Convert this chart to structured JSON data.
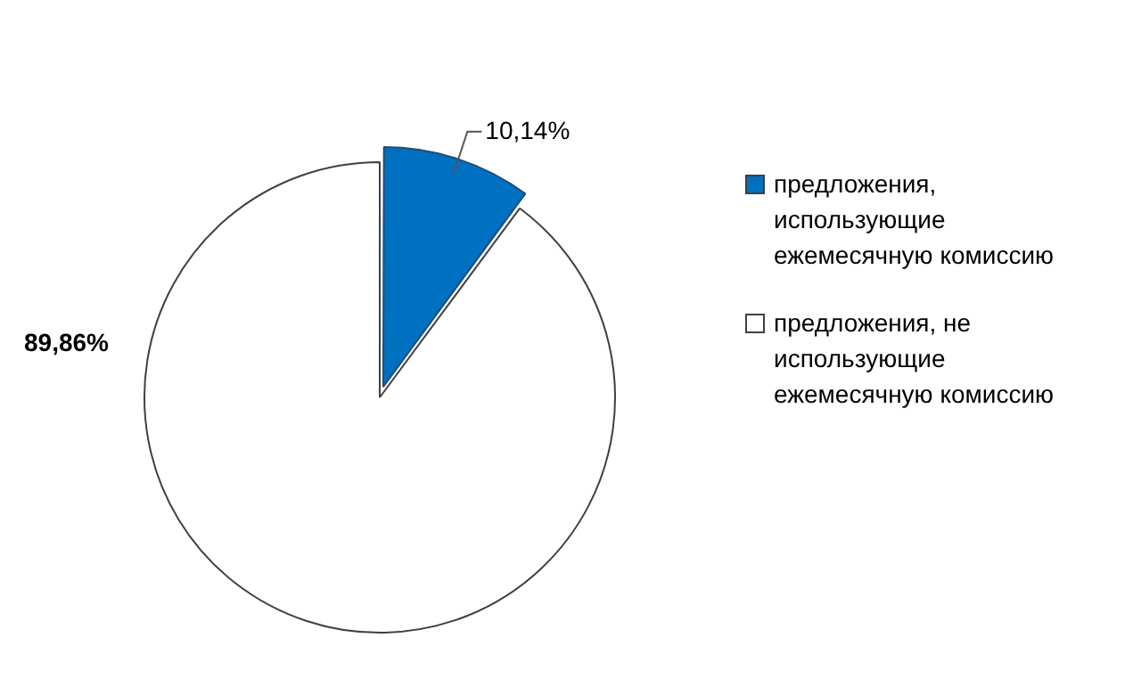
{
  "chart_data": {
    "type": "pie",
    "categories": [
      "предложения, использующие ежемесячную комиссию",
      "предложения, не использующие ежемесячную комиссию"
    ],
    "values": [
      10.14,
      89.86
    ],
    "colors": [
      "#0070c0",
      "#ffffff"
    ],
    "value_labels": [
      "10,14%",
      "89,86%"
    ],
    "legend": "right"
  }
}
